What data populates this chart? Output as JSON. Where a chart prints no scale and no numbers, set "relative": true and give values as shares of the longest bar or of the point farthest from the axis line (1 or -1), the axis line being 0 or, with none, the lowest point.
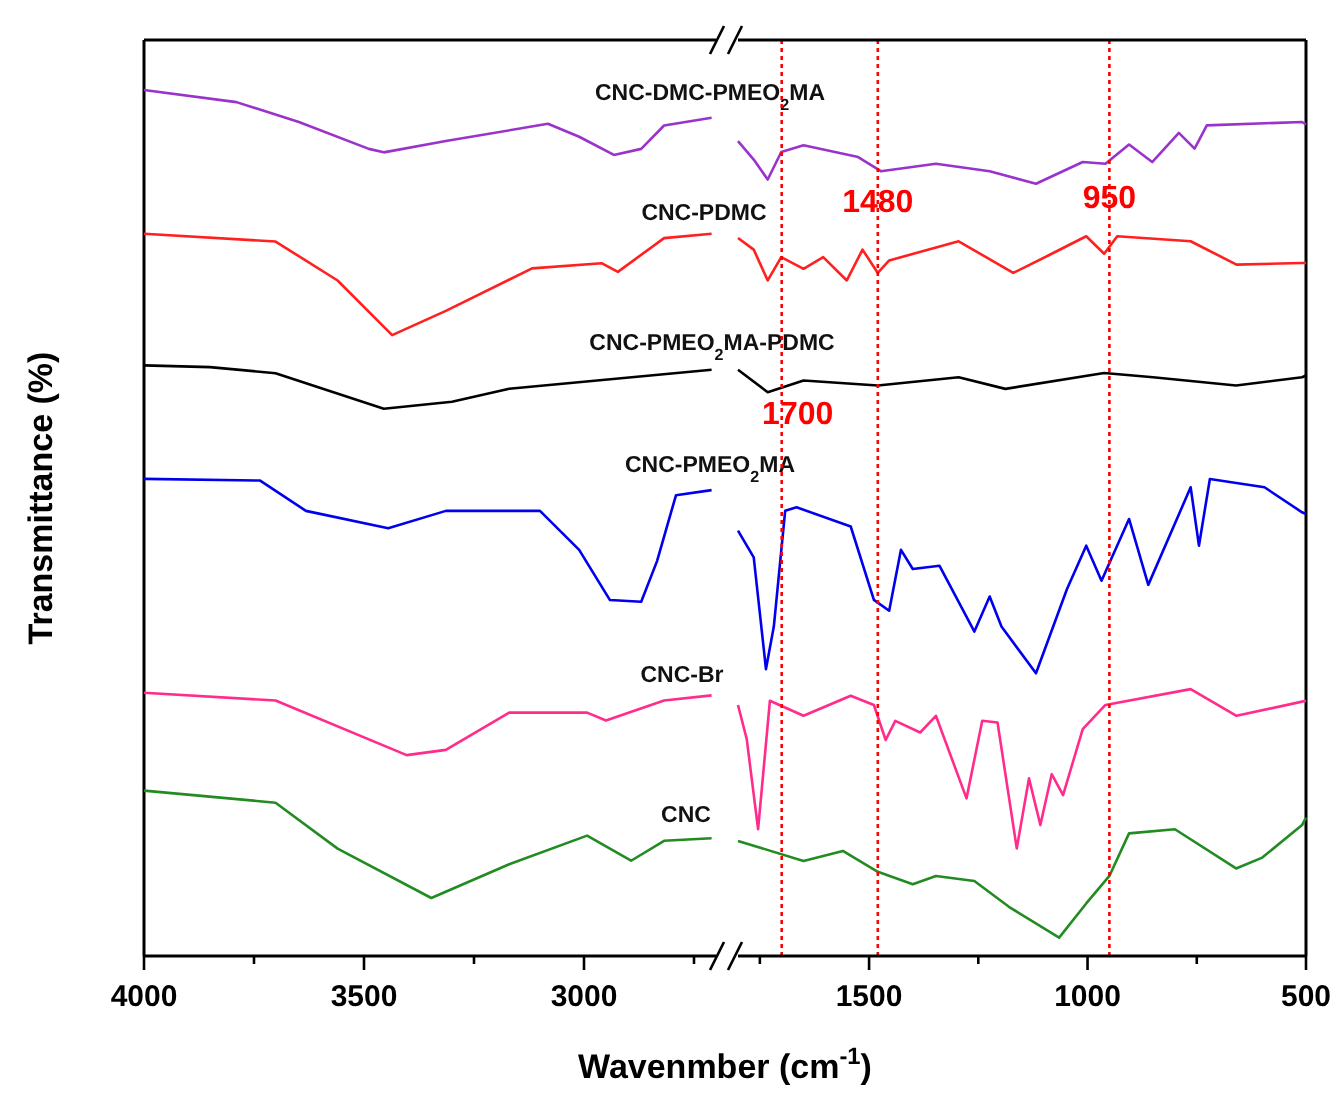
{
  "chart_data": [
    {
      "type": "line",
      "relative": true,
      "ylabel": "Transmittance (%)",
      "xlabel": "Wavenmber (cm$^{-1}$)",
      "xlim": [
        4000,
        2700
      ],
      "xticks": [
        4000,
        3500,
        3000,
        {
          "value": 3750,
          "label": null
        },
        {
          "value": 3250,
          "label": null
        },
        {
          "value": 2750,
          "label": null
        }
      ],
      "tick_labels": "x",
      "grid": false,
      "marker": "none",
      "line_style": "solid",
      "series": [
        {
          "name": "CNC-DMC-PMEO$_{2}$MA",
          "color": "#9933cc",
          "x": [
            4000,
            3790,
            3648,
            3489,
            3455,
            3314,
            3082,
            3011,
            2932,
            2870,
            2818,
            2710
          ],
          "values": [
            1.0,
            0.986,
            0.963,
            0.932,
            0.928,
            0.941,
            0.961,
            0.946,
            0.925,
            0.932,
            0.959,
            0.968
          ]
        },
        {
          "name": "CNC-PDMC",
          "color": "#ff2020",
          "x": [
            4000,
            3701,
            3560,
            3436,
            3314,
            3118,
            2960,
            2923,
            2818,
            2710
          ],
          "values": [
            0.834,
            0.825,
            0.78,
            0.717,
            0.745,
            0.794,
            0.8,
            0.79,
            0.829,
            0.834
          ]
        },
        {
          "name": "CNC-PMEO$_{2}$MA-PDMC",
          "color": "#000000",
          "x": [
            4000,
            3850,
            3701,
            3455,
            3300,
            3170,
            2710
          ],
          "values": [
            0.682,
            0.68,
            0.673,
            0.632,
            0.64,
            0.655,
            0.677
          ]
        },
        {
          "name": "CNC-PMEO$_{2}$MA",
          "color": "#0000ee",
          "x": [
            4000,
            3736,
            3632,
            3445,
            3314,
            3100,
            3011,
            2941,
            2870,
            2834,
            2791,
            2710
          ],
          "values": [
            0.551,
            0.549,
            0.514,
            0.494,
            0.514,
            0.514,
            0.469,
            0.411,
            0.409,
            0.456,
            0.532,
            0.538
          ]
        },
        {
          "name": "CNC-Br",
          "color": "#ff2c8c",
          "x": [
            4000,
            3701,
            3403,
            3314,
            3170,
            2993,
            2950,
            2818,
            2710
          ],
          "values": [
            0.304,
            0.295,
            0.232,
            0.238,
            0.281,
            0.281,
            0.272,
            0.295,
            0.301
          ]
        },
        {
          "name": "CNC",
          "color": "#228b22",
          "x": [
            4000,
            3701,
            3560,
            3347,
            3170,
            2993,
            2893,
            2818,
            2710
          ],
          "values": [
            0.191,
            0.177,
            0.124,
            0.067,
            0.106,
            0.139,
            0.11,
            0.133,
            0.136
          ]
        }
      ]
    },
    {
      "type": "line",
      "relative": true,
      "xlim": [
        1800,
        500
      ],
      "xticks": [
        1500,
        1000,
        500,
        {
          "value": 1750,
          "label": null
        },
        {
          "value": 1250,
          "label": null
        },
        {
          "value": 750,
          "label": null
        }
      ],
      "tick_labels": "x",
      "grid": false,
      "marker": "none",
      "line_style": "solid",
      "ref_lines": [
        {
          "axis": "x",
          "value": 1700,
          "label": "1700",
          "color": "#ff0000",
          "line_style": "dotted"
        },
        {
          "axis": "x",
          "value": 1480,
          "label": "1480",
          "color": "#ff0000",
          "line_style": "dotted"
        },
        {
          "axis": "x",
          "value": 950,
          "label": "950",
          "color": "#ff0000",
          "line_style": "dotted"
        }
      ],
      "series": [
        {
          "color": "#9933cc",
          "x": [
            1800,
            1764,
            1732,
            1701,
            1650,
            1525,
            1473,
            1347,
            1224,
            1118,
            1011,
            959,
            905,
            852,
            791,
            755,
            727,
            509,
            500
          ],
          "values": [
            0.977,
            0.955,
            0.931,
            0.964,
            0.972,
            0.958,
            0.941,
            0.95,
            0.941,
            0.926,
            0.952,
            0.95,
            0.973,
            0.952,
            0.987,
            0.968,
            0.996,
            1.0,
            0.997
          ]
        },
        {
          "color": "#ff2020",
          "x": [
            1800,
            1764,
            1732,
            1701,
            1650,
            1605,
            1551,
            1515,
            1480,
            1454,
            1295,
            1170,
            1082,
            1003,
            962,
            932,
            764,
            659,
            509,
            500
          ],
          "values": [
            0.861,
            0.847,
            0.81,
            0.838,
            0.824,
            0.838,
            0.81,
            0.847,
            0.819,
            0.834,
            0.857,
            0.819,
            0.842,
            0.863,
            0.842,
            0.863,
            0.857,
            0.829,
            0.831,
            0.831
          ]
        },
        {
          "color": "#000000",
          "x": [
            1800,
            1732,
            1650,
            1480,
            1295,
            1188,
            962,
            850,
            660,
            509,
            500
          ],
          "values": [
            0.703,
            0.676,
            0.69,
            0.684,
            0.694,
            0.68,
            0.699,
            0.694,
            0.684,
            0.694,
            0.696
          ]
        },
        {
          "color": "#0000ee",
          "x": [
            1800,
            1764,
            1736,
            1718,
            1692,
            1666,
            1542,
            1489,
            1454,
            1427,
            1400,
            1339,
            1259,
            1224,
            1197,
            1118,
            1047,
            1003,
            968,
            905,
            861,
            764,
            745,
            720,
            595,
            509,
            500
          ],
          "values": [
            0.51,
            0.478,
            0.344,
            0.395,
            0.534,
            0.538,
            0.515,
            0.427,
            0.414,
            0.487,
            0.464,
            0.468,
            0.389,
            0.431,
            0.395,
            0.339,
            0.44,
            0.492,
            0.45,
            0.524,
            0.445,
            0.562,
            0.492,
            0.572,
            0.562,
            0.532,
            0.53
          ]
        },
        {
          "color": "#ff2c8c",
          "x": [
            1800,
            1780,
            1754,
            1727,
            1650,
            1542,
            1489,
            1462,
            1440,
            1383,
            1347,
            1277,
            1241,
            1206,
            1162,
            1134,
            1108,
            1082,
            1056,
            1011,
            959,
            764,
            659,
            509,
            500
          ],
          "values": [
            0.301,
            0.26,
            0.152,
            0.306,
            0.288,
            0.312,
            0.301,
            0.259,
            0.282,
            0.268,
            0.288,
            0.189,
            0.282,
            0.28,
            0.129,
            0.213,
            0.157,
            0.218,
            0.193,
            0.272,
            0.301,
            0.32,
            0.288,
            0.305,
            0.306
          ]
        },
        {
          "color": "#228b22",
          "x": [
            1800,
            1650,
            1560,
            1480,
            1400,
            1347,
            1259,
            1180,
            1065,
            1003,
            950,
            905,
            800,
            660,
            600,
            509,
            500
          ],
          "values": [
            0.138,
            0.114,
            0.126,
            0.101,
            0.086,
            0.096,
            0.09,
            0.059,
            0.022,
            0.063,
            0.096,
            0.147,
            0.152,
            0.105,
            0.118,
            0.157,
            0.166
          ]
        }
      ]
    }
  ]
}
